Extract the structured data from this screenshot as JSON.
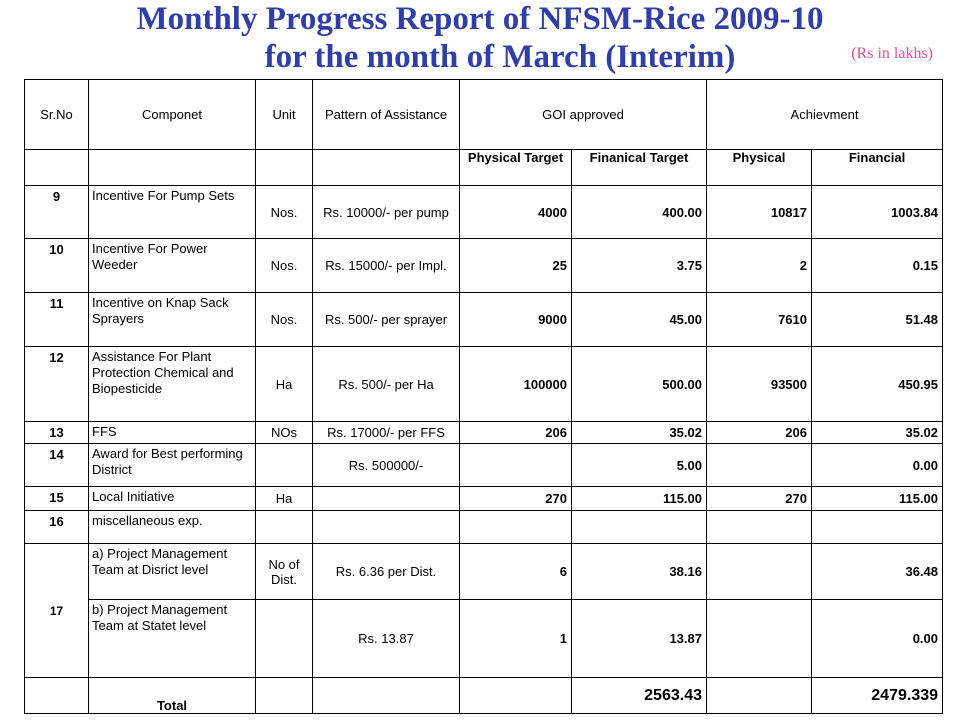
{
  "title_line1": "Monthly Progress Report of NFSM-Rice 2009-10",
  "title_line2": "for the month of March (Interim)",
  "unit_note": "(Rs in lakhs)",
  "headers": {
    "sr_no": "Sr.No",
    "component": "Componet",
    "unit": "Unit",
    "pattern": "Pattern of Assistance",
    "goi_approved": "GOI approved",
    "achievement": "Achievment",
    "physical_target": "Physical Target",
    "financial_target": "Finanical Target",
    "physical": "Physical",
    "financial": "Financial"
  },
  "rows": [
    {
      "sr": "9",
      "component": "Incentive For Pump Sets",
      "unit": "Nos.",
      "pattern": "Rs. 10000/- per pump",
      "phys_target": "4000",
      "fin_target": "400.00",
      "phys": "10817",
      "fin": "1003.84"
    },
    {
      "sr": "10",
      "component": "Incentive For Power Weeder",
      "unit": "Nos.",
      "pattern": "Rs. 15000/- per Impl.",
      "phys_target": "25",
      "fin_target": "3.75",
      "phys": "2",
      "fin": "0.15"
    },
    {
      "sr": "11",
      "component": "Incentive on Knap Sack Sprayers",
      "unit": "Nos.",
      "pattern": "Rs. 500/- per sprayer",
      "phys_target": "9000",
      "fin_target": "45.00",
      "phys": "7610",
      "fin": "51.48"
    },
    {
      "sr": "12",
      "component": "Assistance For Plant Protection Chemical and Biopesticide",
      "unit": "Ha",
      "pattern": "Rs. 500/- per Ha",
      "phys_target": "100000",
      "fin_target": "500.00",
      "phys": "93500",
      "fin": "450.95"
    },
    {
      "sr": "13",
      "component": "FFS",
      "unit": "NOs",
      "pattern": "Rs. 17000/- per FFS",
      "phys_target": "206",
      "fin_target": "35.02",
      "phys": "206",
      "fin": "35.02"
    },
    {
      "sr": "14",
      "component": "Award for Best performing District",
      "unit": "",
      "pattern": "Rs. 500000/-",
      "phys_target": "",
      "fin_target": "5.00",
      "phys": "",
      "fin": "0.00"
    },
    {
      "sr": "15",
      "component": "Local Initiative",
      "unit": "Ha",
      "pattern": "",
      "phys_target": "270",
      "fin_target": "115.00",
      "phys": "270",
      "fin": "115.00"
    },
    {
      "sr": "16",
      "component": "miscellaneous exp.",
      "unit": "",
      "pattern": "",
      "phys_target": "",
      "fin_target": "",
      "phys": "",
      "fin": ""
    }
  ],
  "row17": {
    "sr": "17",
    "a": {
      "component": "a) Project Management Team at Disrict level",
      "unit": "No of Dist.",
      "pattern": "Rs. 6.36 per Dist.",
      "phys_target": "6",
      "fin_target": "38.16",
      "phys": "",
      "fin": "36.48"
    },
    "b": {
      "component": "b) Project Management Team at Statet level",
      "unit": "",
      "pattern": "Rs. 13.87",
      "phys_target": "1",
      "fin_target": "13.87",
      "phys": "",
      "fin": "0.00"
    }
  },
  "total": {
    "label": "Total",
    "fin_target": "2563.43",
    "fin": "2479.339"
  }
}
